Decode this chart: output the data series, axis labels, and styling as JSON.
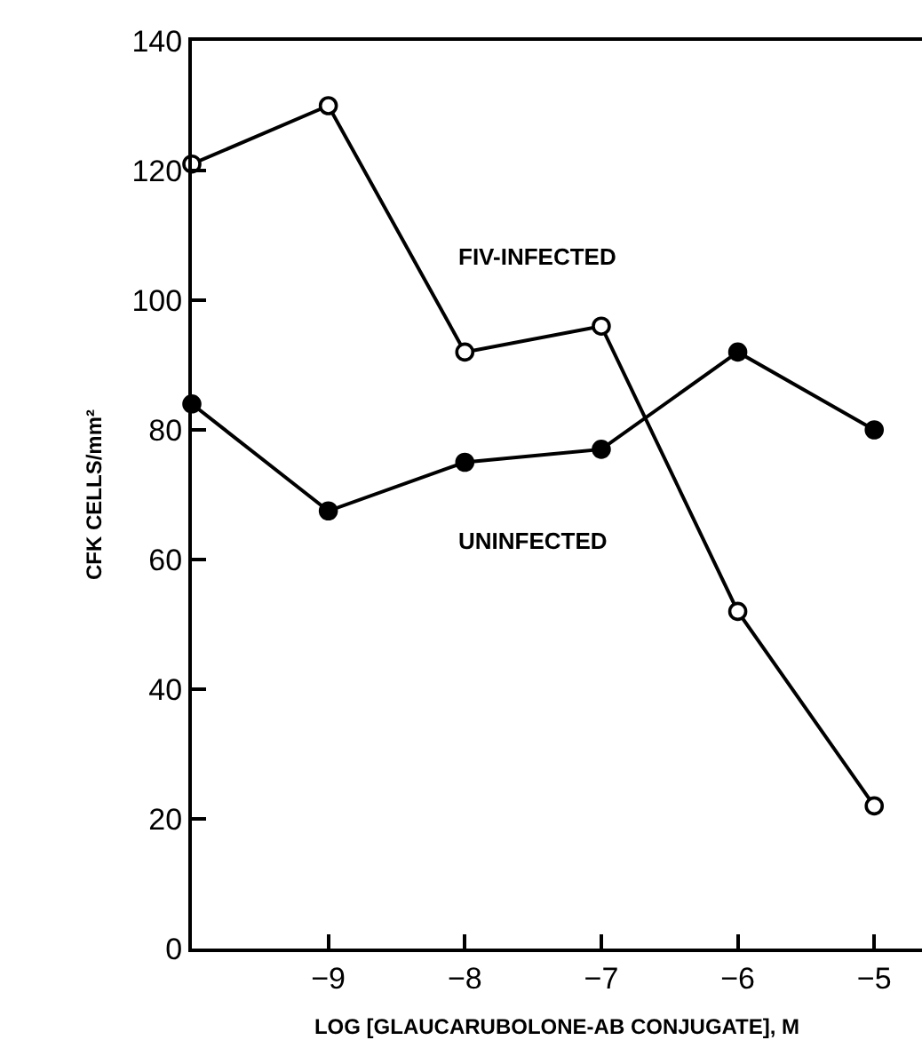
{
  "chart_data": {
    "type": "line",
    "xlabel": "LOG [GLAUCARUBOLONE-AB CONJUGATE], M",
    "ylabel": "CFK CELLS/mm²",
    "categories": [
      null,
      "−9",
      "−8",
      "−7",
      "−6",
      "−5"
    ],
    "series": [
      {
        "name": "FIV-INFECTED",
        "color": "#000000",
        "values": [
          121,
          130,
          92,
          96,
          52,
          22
        ]
      },
      {
        "name": "UNINFECTED",
        "color": "#000000",
        "values": [
          84,
          67.5,
          75,
          77,
          92,
          80
        ]
      }
    ],
    "ylim": [
      0,
      140
    ],
    "yticks": [
      0,
      20,
      40,
      60,
      80,
      100,
      120,
      140
    ],
    "legend": false,
    "marker": "circle",
    "line_style": "solid"
  }
}
